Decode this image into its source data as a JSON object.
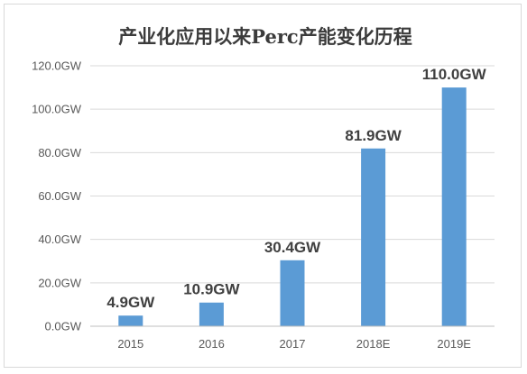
{
  "chart_data": {
    "type": "bar",
    "title": "产业化应用以来Perc产能变化历程",
    "categories": [
      "2015",
      "2016",
      "2017",
      "2018E",
      "2019E"
    ],
    "values": [
      4.9,
      10.9,
      30.4,
      81.9,
      110.0
    ],
    "data_labels": [
      "4.9GW",
      "10.9GW",
      "30.4GW",
      "81.9GW",
      "110.0GW"
    ],
    "y_ticks": [
      "0.0GW",
      "20.0GW",
      "40.0GW",
      "60.0GW",
      "80.0GW",
      "100.0GW",
      "120.0GW"
    ],
    "ylim": [
      0,
      120
    ],
    "y_step": 20,
    "xlabel": "",
    "ylabel": "",
    "grid": true,
    "legend": "none",
    "bar_color": "#5b9bd5"
  }
}
